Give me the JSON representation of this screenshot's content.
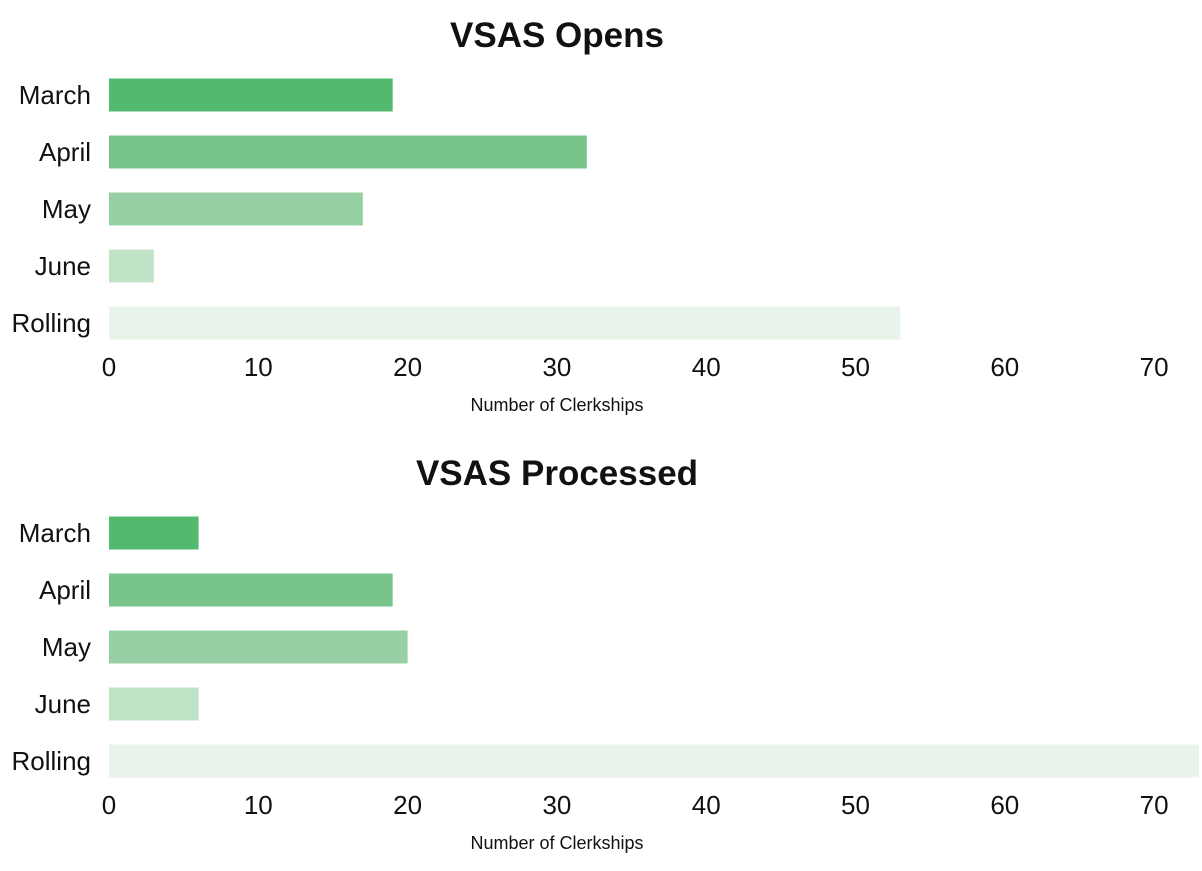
{
  "chart_data": [
    {
      "type": "bar",
      "orientation": "horizontal",
      "title": "VSAS Opens",
      "xlabel": "Number of Clerkships",
      "ylabel": "",
      "categories": [
        "March",
        "April",
        "May",
        "June",
        "Rolling"
      ],
      "values": [
        19,
        32,
        17,
        3,
        53
      ],
      "colors": [
        "#52b96f",
        "#78c48b",
        "#97d0a3",
        "#c0e2c7",
        "#e8f3ea"
      ],
      "xlim": [
        0,
        73
      ],
      "xticks": [
        0,
        10,
        20,
        30,
        40,
        50,
        60,
        70
      ],
      "grid": false,
      "legend": "none"
    },
    {
      "type": "bar",
      "orientation": "horizontal",
      "title": "VSAS Processed",
      "xlabel": "Number of Clerkships",
      "ylabel": "",
      "categories": [
        "March",
        "April",
        "May",
        "June",
        "Rolling"
      ],
      "values": [
        6,
        19,
        20,
        6,
        73
      ],
      "colors": [
        "#52b96f",
        "#78c48b",
        "#97d0a3",
        "#c0e2c7",
        "#e8f3ea"
      ],
      "xlim": [
        0,
        73
      ],
      "xticks": [
        0,
        10,
        20,
        30,
        40,
        50,
        60,
        70
      ],
      "grid": false,
      "legend": "none"
    }
  ]
}
